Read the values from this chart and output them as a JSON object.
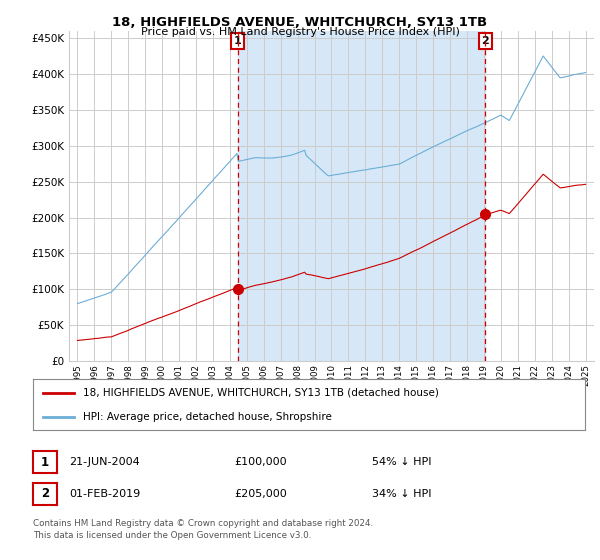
{
  "title": "18, HIGHFIELDS AVENUE, WHITCHURCH, SY13 1TB",
  "subtitle": "Price paid vs. HM Land Registry's House Price Index (HPI)",
  "bg_color": "#ffffff",
  "shade_color": "#d6e8f7",
  "hpi_color": "#6baed6",
  "price_color": "#cc0000",
  "vline_color": "#cc0000",
  "grid_color": "#cccccc",
  "ylim": [
    0,
    460000
  ],
  "yticks": [
    0,
    50000,
    100000,
    150000,
    200000,
    250000,
    300000,
    350000,
    400000,
    450000
  ],
  "xlim": [
    1994.5,
    2025.5
  ],
  "sale1_year": 2004.47,
  "sale1_price": 100000,
  "sale1_label": "1",
  "sale2_year": 2019.08,
  "sale2_price": 205000,
  "sale2_label": "2",
  "footer1": "Contains HM Land Registry data © Crown copyright and database right 2024.",
  "footer2": "This data is licensed under the Open Government Licence v3.0.",
  "legend_entry1": "18, HIGHFIELDS AVENUE, WHITCHURCH, SY13 1TB (detached house)",
  "legend_entry2": "HPI: Average price, detached house, Shropshire",
  "table_row1_num": "1",
  "table_row1_date": "21-JUN-2004",
  "table_row1_price": "£100,000",
  "table_row1_pct": "54% ↓ HPI",
  "table_row2_num": "2",
  "table_row2_date": "01-FEB-2019",
  "table_row2_price": "£205,000",
  "table_row2_pct": "34% ↓ HPI"
}
